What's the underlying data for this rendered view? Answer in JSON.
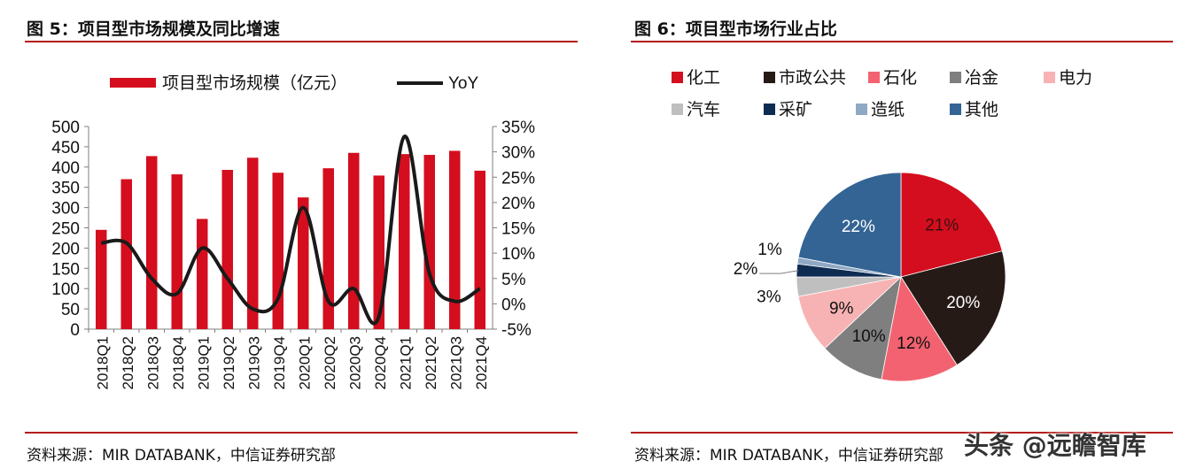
{
  "left_panel": {
    "title": "图 5：项目型市场规模及同比增速",
    "source": "资料来源：MIR DATABANK，中信证券研究部"
  },
  "right_panel": {
    "title": "图 6：项目型市场行业占比",
    "source": "资料来源：MIR DATABANK，中信证券研究部"
  },
  "watermark": "头条 @远瞻智库",
  "colors": {
    "bar": "#d40e1e",
    "line": "#1a1a1a",
    "rule": "#b31b1b"
  },
  "chart_data": [
    {
      "type": "bar",
      "title": "项目型市场规模及同比增速",
      "categories": [
        "2018Q1",
        "2018Q2",
        "2018Q3",
        "2018Q4",
        "2019Q1",
        "2019Q2",
        "2019Q3",
        "2019Q4",
        "2020Q1",
        "2020Q2",
        "2020Q3",
        "2020Q4",
        "2021Q1",
        "2021Q2",
        "2021Q3",
        "2021Q4"
      ],
      "series": [
        {
          "name": "项目型市场规模（亿元）",
          "type": "bar",
          "axis": "left",
          "values": [
            245,
            370,
            427,
            382,
            272,
            393,
            423,
            386,
            325,
            397,
            435,
            379,
            432,
            430,
            440,
            391
          ]
        },
        {
          "name": "YoY",
          "type": "line",
          "axis": "right",
          "values": [
            12,
            12,
            5,
            2,
            11,
            5,
            -1,
            1,
            19,
            0.5,
            3,
            -2.5,
            33,
            6,
            0.5,
            3
          ]
        }
      ],
      "y_left": {
        "min": 0,
        "max": 500,
        "ticks": [
          "0",
          "50",
          "100",
          "150",
          "200",
          "250",
          "300",
          "350",
          "400",
          "450",
          "500"
        ]
      },
      "y_right": {
        "min": -5,
        "max": 35,
        "ticks": [
          "-5%",
          "0%",
          "5%",
          "10%",
          "15%",
          "20%",
          "25%",
          "30%",
          "35%"
        ]
      },
      "legend": {
        "position": "top-center"
      }
    },
    {
      "type": "pie",
      "title": "项目型市场行业占比",
      "legend": [
        {
          "label": "化工",
          "color": "#d40e1e"
        },
        {
          "label": "市政公共",
          "color": "#261a17"
        },
        {
          "label": "石化",
          "color": "#f26270"
        },
        {
          "label": "冶金",
          "color": "#7f7f7f"
        },
        {
          "label": "电力",
          "color": "#f7b3b3"
        },
        {
          "label": "汽车",
          "color": "#bfbfbf"
        },
        {
          "label": "采矿",
          "color": "#0e2b52"
        },
        {
          "label": "造纸",
          "color": "#8fa9c4"
        },
        {
          "label": "其他",
          "color": "#336494"
        }
      ],
      "slices": [
        {
          "label": "化工",
          "value": 21,
          "text": "21%",
          "color": "#d40e1e"
        },
        {
          "label": "市政公共",
          "value": 20,
          "text": "20%",
          "color": "#261a17"
        },
        {
          "label": "石化",
          "value": 12,
          "text": "12%",
          "color": "#f26270"
        },
        {
          "label": "冶金",
          "value": 10,
          "text": "10%",
          "color": "#7f7f7f"
        },
        {
          "label": "电力",
          "value": 9,
          "text": "9%",
          "color": "#f7b3b3"
        },
        {
          "label": "汽车",
          "value": 3,
          "text": "3%",
          "color": "#bfbfbf"
        },
        {
          "label": "采矿",
          "value": 2,
          "text": "2%",
          "color": "#0e2b52"
        },
        {
          "label": "造纸",
          "value": 1,
          "text": "1%",
          "color": "#8fa9c4"
        },
        {
          "label": "其他",
          "value": 22,
          "text": "22%",
          "color": "#336494"
        }
      ]
    }
  ]
}
